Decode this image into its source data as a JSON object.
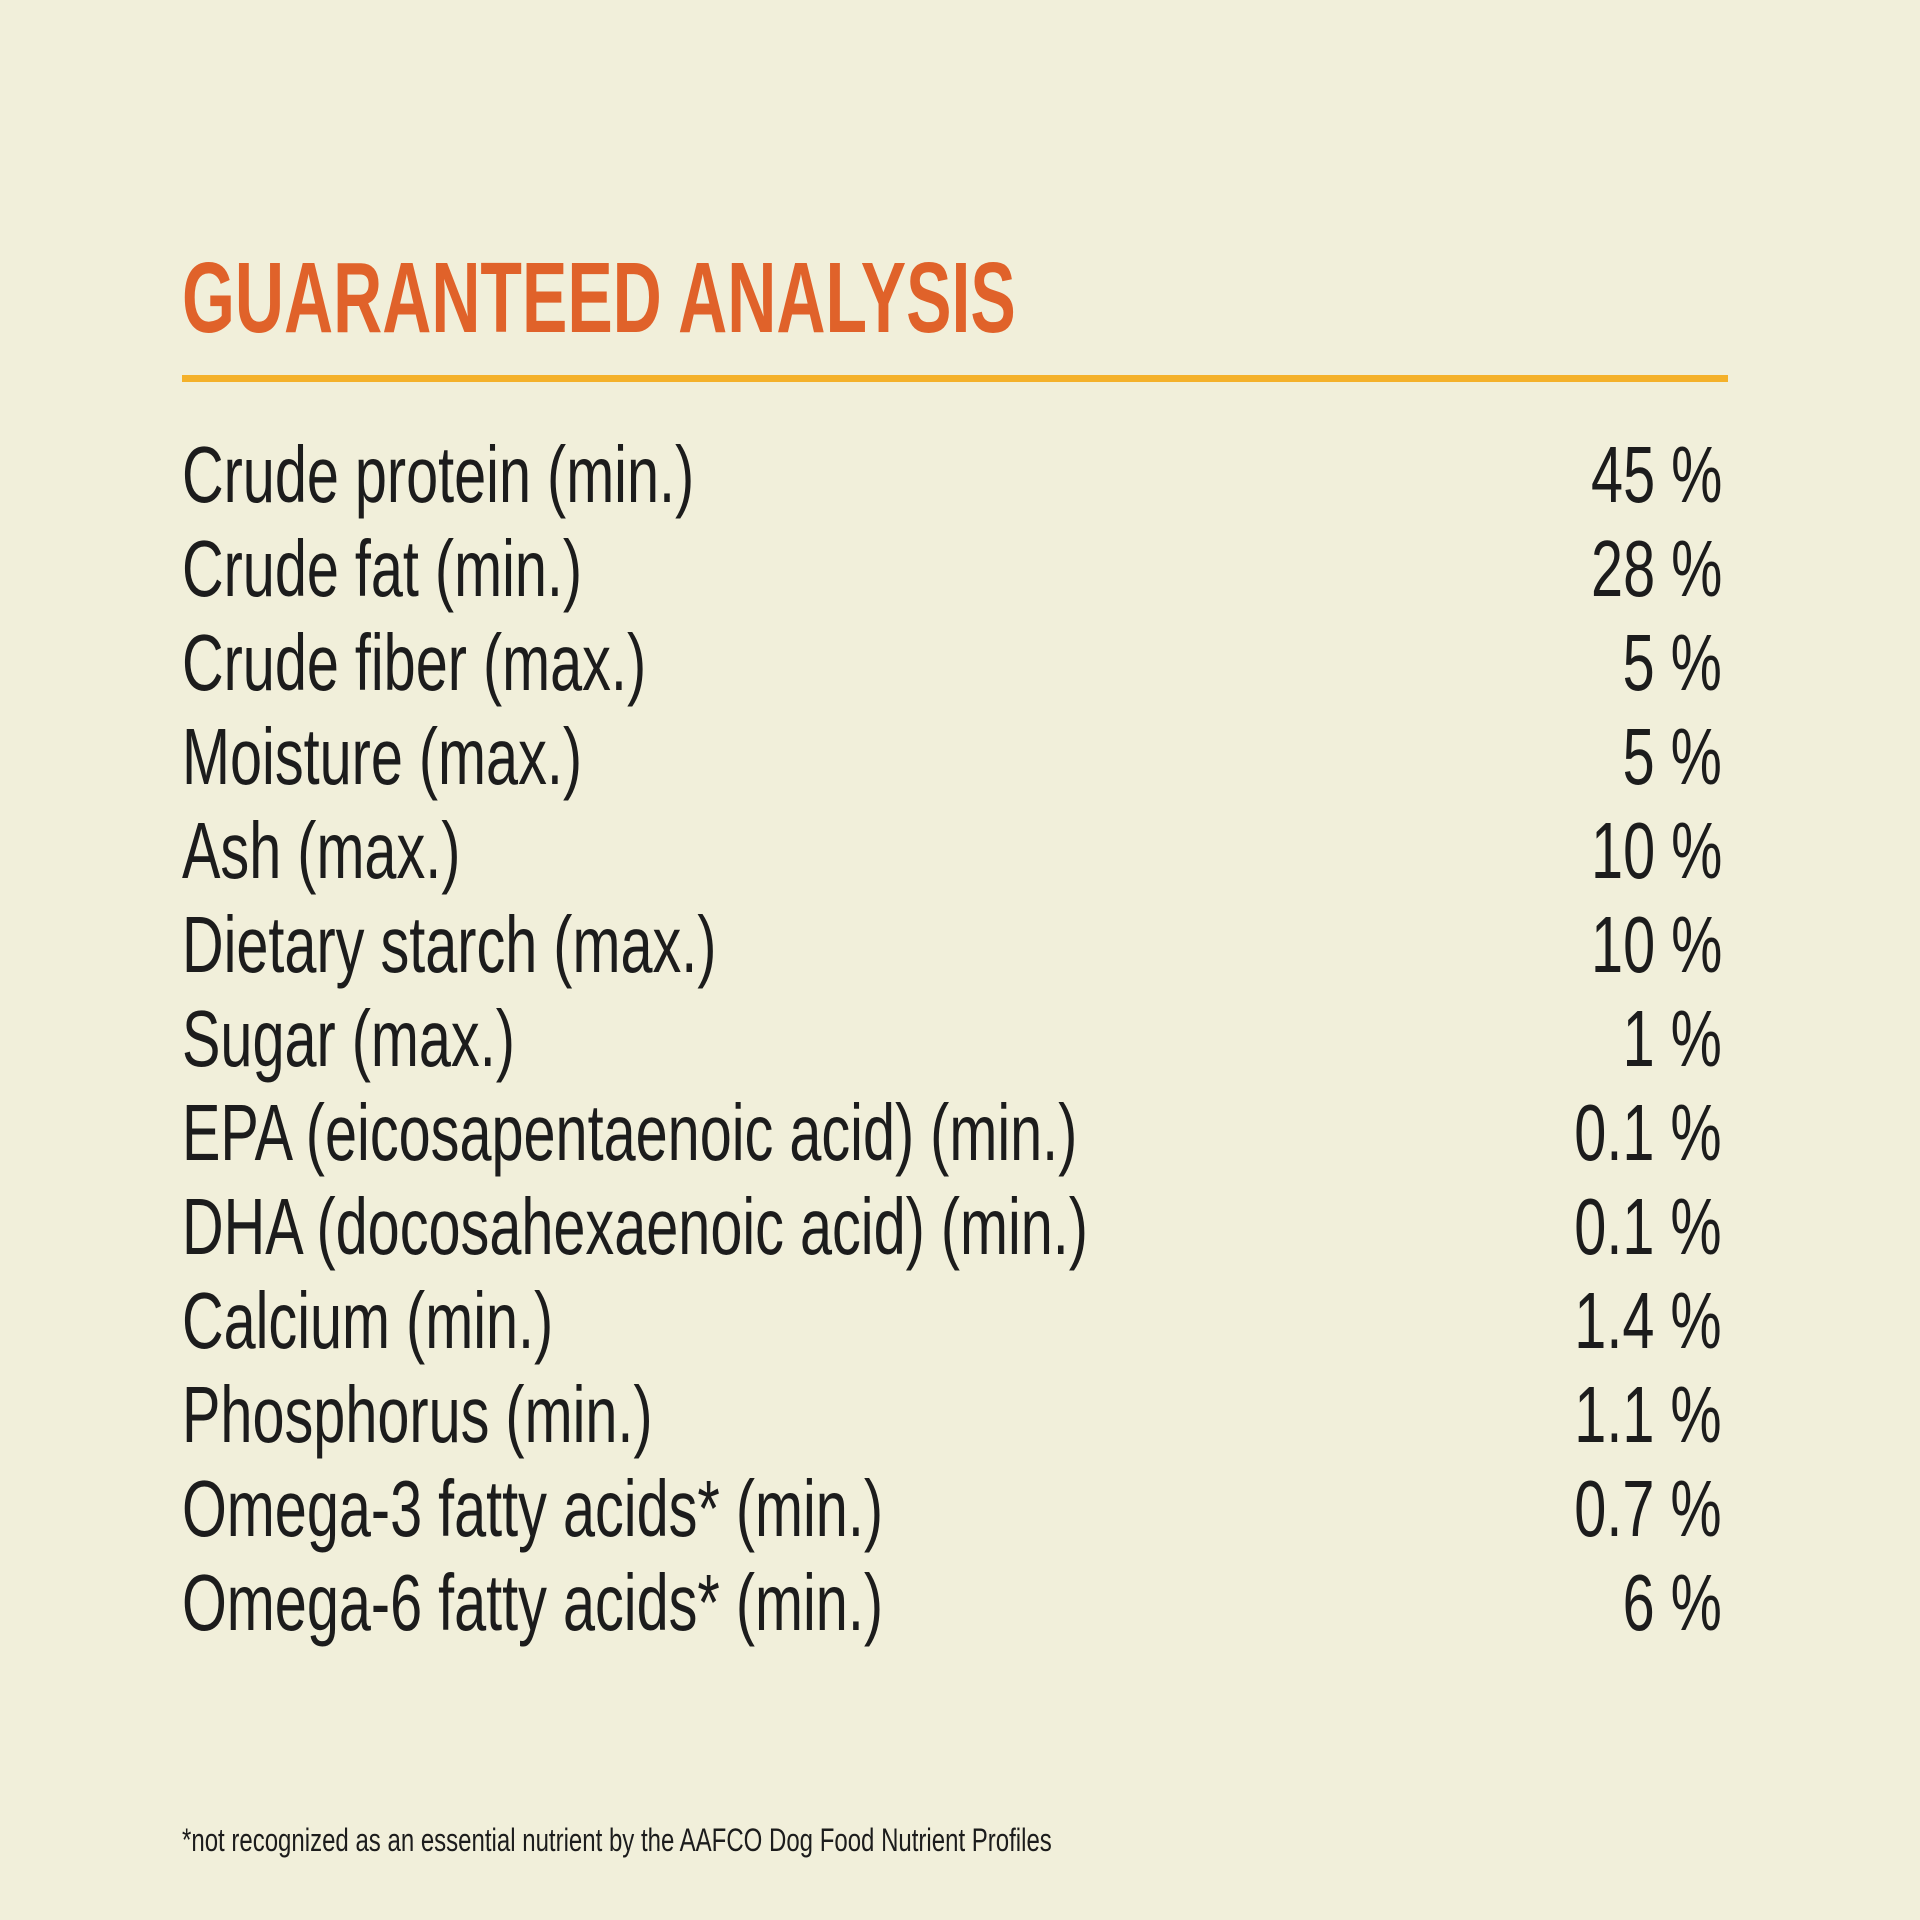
{
  "header": {
    "title": "GUARANTEED ANALYSIS"
  },
  "table": {
    "rows": [
      [
        "Crude protein (min.)",
        "45 %"
      ],
      [
        "Crude fat (min.)",
        "28 %"
      ],
      [
        "Crude fiber (max.)",
        "5 %"
      ],
      [
        "Moisture (max.)",
        "5 %"
      ],
      [
        "Ash (max.)",
        "10 %"
      ],
      [
        "Dietary starch (max.)",
        "10 %"
      ],
      [
        "Sugar (max.)",
        "1 %"
      ],
      [
        "EPA (eicosapentaenoic acid) (min.)",
        "0.1 %"
      ],
      [
        "DHA (docosahexaenoic acid) (min.)",
        "0.1 %"
      ],
      [
        "Calcium (min.)",
        "1.4 %"
      ],
      [
        "Phosphorus (min.)",
        "1.1 %"
      ],
      [
        "Omega-3 fatty acids* (min.)",
        "0.7 %"
      ],
      [
        "Omega-6 fatty acids* (min.)",
        "6 %"
      ]
    ]
  },
  "footnote": "*not recognized as an essential nutrient by the AAFCO Dog Food Nutrient Profiles"
}
